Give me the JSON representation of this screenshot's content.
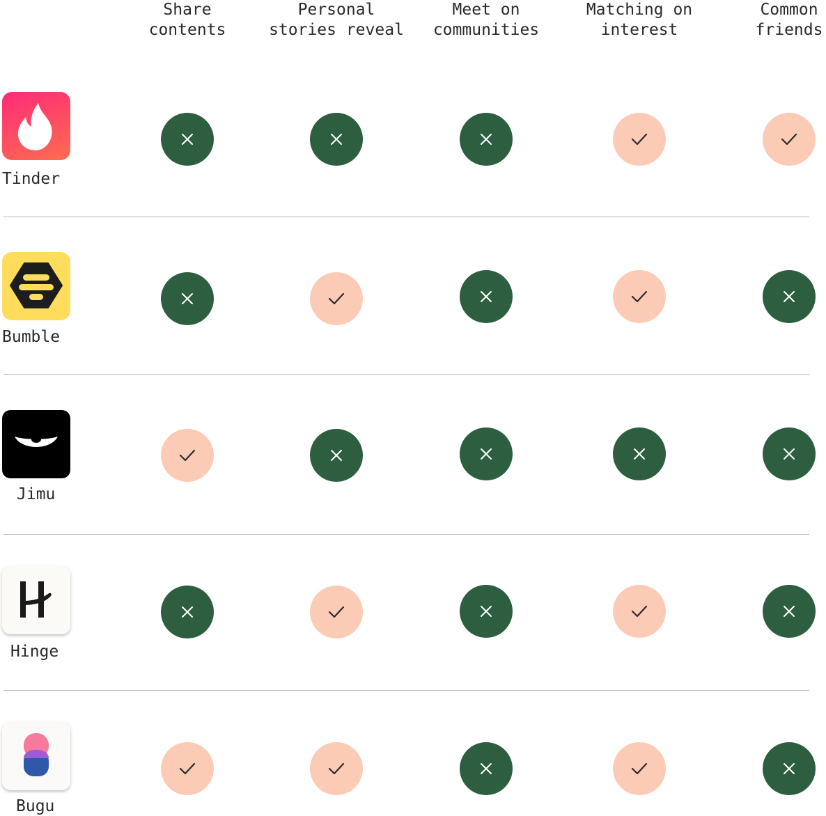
{
  "columns": [
    "Share\ncontents",
    "Personal\nstories reveal",
    "Meet on\ncommunities",
    "Matching on\ninterest",
    "Common\nfriends"
  ],
  "colors": {
    "no": "#2d5e40",
    "yes": "#fbcbb6",
    "divider": "#b9b9b9"
  },
  "apps": [
    {
      "name": "Tinder",
      "icon": "tinder-flame-icon",
      "values": [
        "no",
        "no",
        "no",
        "yes",
        "yes"
      ]
    },
    {
      "name": "Bumble",
      "icon": "bumble-hive-icon",
      "values": [
        "no",
        "yes",
        "no",
        "yes",
        "no"
      ]
    },
    {
      "name": "Jimu",
      "icon": "jimu-eye-icon",
      "values": [
        "yes",
        "no",
        "no",
        "no",
        "no"
      ]
    },
    {
      "name": "Hinge",
      "icon": "hinge-h-icon",
      "values": [
        "no",
        "yes",
        "no",
        "yes",
        "no"
      ]
    },
    {
      "name": "Bugu",
      "icon": "bugu-blob-icon",
      "values": [
        "yes",
        "yes",
        "no",
        "yes",
        "no"
      ]
    }
  ]
}
